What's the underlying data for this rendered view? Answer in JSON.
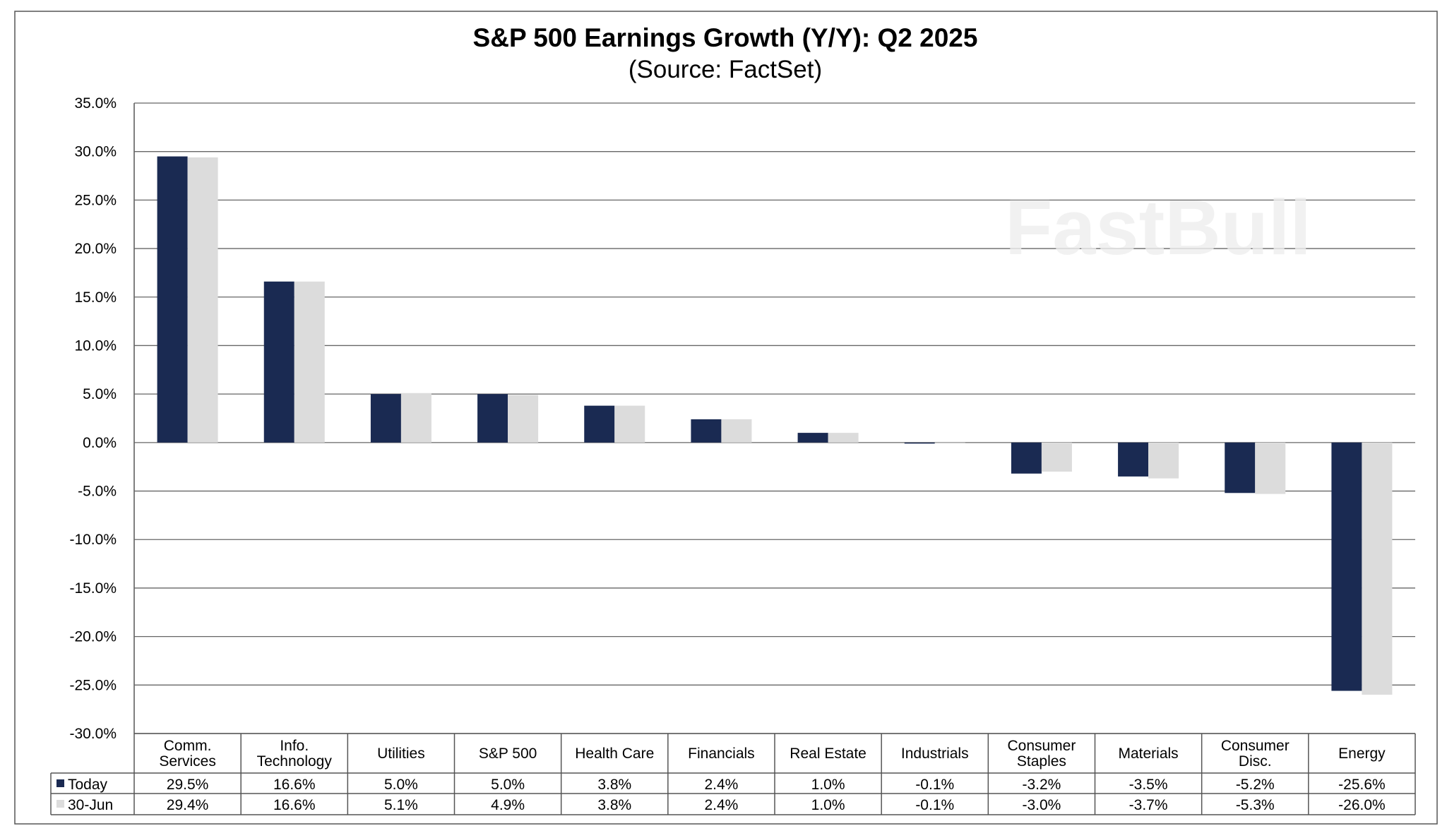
{
  "chart_data": {
    "type": "bar",
    "title": "S&P 500 Earnings Growth (Y/Y): Q2 2025",
    "subtitle": "(Source: FactSet)",
    "categories": [
      "Comm.\nServices",
      "Info.\nTechnology",
      "Utilities",
      "S&P 500",
      "Health Care",
      "Financials",
      "Real Estate",
      "Industrials",
      "Consumer\nStaples",
      "Materials",
      "Consumer\nDisc.",
      "Energy"
    ],
    "series": [
      {
        "name": "Today",
        "color": "#1a2a52",
        "values": [
          29.5,
          16.6,
          5.0,
          5.0,
          3.8,
          2.4,
          1.0,
          -0.1,
          -3.2,
          -3.5,
          -5.2,
          -25.6
        ],
        "labels": [
          "29.5%",
          "16.6%",
          "5.0%",
          "5.0%",
          "3.8%",
          "2.4%",
          "1.0%",
          "-0.1%",
          "-3.2%",
          "-3.5%",
          "-5.2%",
          "-25.6%"
        ]
      },
      {
        "name": "30-Jun",
        "color": "#dcdcdc",
        "values": [
          29.4,
          16.6,
          5.1,
          4.9,
          3.8,
          2.4,
          1.0,
          -0.1,
          -3.0,
          -3.7,
          -5.3,
          -26.0
        ],
        "labels": [
          "29.4%",
          "16.6%",
          "5.1%",
          "4.9%",
          "3.8%",
          "2.4%",
          "1.0%",
          "-0.1%",
          "-3.0%",
          "-3.7%",
          "-5.3%",
          "-26.0%"
        ]
      }
    ],
    "ylim": [
      -30,
      35
    ],
    "yticks": [
      "35.0%",
      "30.0%",
      "25.0%",
      "20.0%",
      "15.0%",
      "10.0%",
      "5.0%",
      "0.0%",
      "-5.0%",
      "-10.0%",
      "-15.0%",
      "-20.0%",
      "-25.0%",
      "-30.0%"
    ],
    "ytick_values": [
      35,
      30,
      25,
      20,
      15,
      10,
      5,
      0,
      -5,
      -10,
      -15,
      -20,
      -25,
      -30
    ],
    "grid": true,
    "legend": "data-table-bottom"
  },
  "watermark": "FastBull"
}
